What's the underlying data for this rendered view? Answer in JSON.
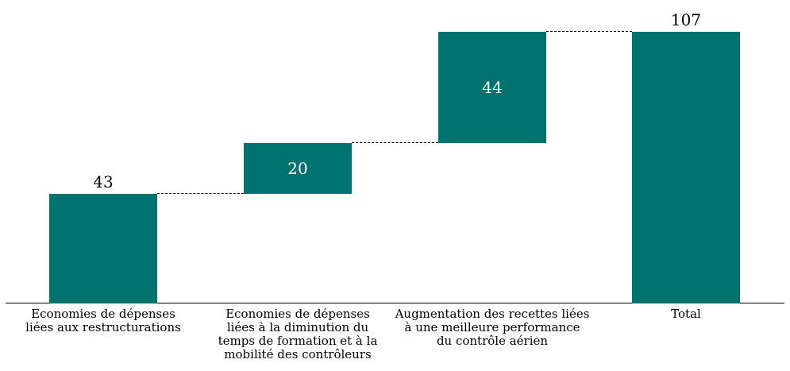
{
  "chart_data": {
    "type": "bar",
    "subtype": "waterfall",
    "title": "",
    "xlabel": "",
    "ylabel": "",
    "ylim": [
      0,
      115
    ],
    "grid": false,
    "legend": false,
    "bar_color": "#00736E",
    "connector_color": "#000000",
    "connector_style": "dashed",
    "axis_color": "#000000",
    "bars": [
      {
        "category": "Economies de dépenses liées aux restructurations",
        "category_lines": [
          "Economies de dépenses",
          "liées aux restructurations"
        ],
        "start": 0,
        "end": 43,
        "value": 43,
        "value_label": "43",
        "value_label_position": "above",
        "value_label_color": "#000000"
      },
      {
        "category": "Economies de dépenses liées à la diminution du temps de formation et à la mobilité des contrôleurs",
        "category_lines": [
          "Economies de dépenses",
          "liées à la diminution du",
          "temps de formation et à la",
          "mobilité des contrôleurs"
        ],
        "start": 43,
        "end": 63,
        "value": 20,
        "value_label": "20",
        "value_label_position": "inside",
        "value_label_color": "#FFFFFF"
      },
      {
        "category": "Augmentation des recettes liées à une meilleure performance du contrôle aérien",
        "category_lines": [
          "Augmentation des recettes liées",
          "à une meilleure performance",
          "du contrôle aérien"
        ],
        "start": 63,
        "end": 107,
        "value": 44,
        "value_label": "44",
        "value_label_position": "inside",
        "value_label_color": "#FFFFFF"
      },
      {
        "category": "Total",
        "category_lines": [
          "Total"
        ],
        "start": 0,
        "end": 107,
        "value": 107,
        "value_label": "107",
        "value_label_position": "above",
        "value_label_color": "#000000"
      }
    ],
    "connectors": [
      {
        "from": 0,
        "to": 1,
        "level": 43
      },
      {
        "from": 1,
        "to": 2,
        "level": 63
      },
      {
        "from": 2,
        "to": 3,
        "level": 107
      }
    ]
  }
}
